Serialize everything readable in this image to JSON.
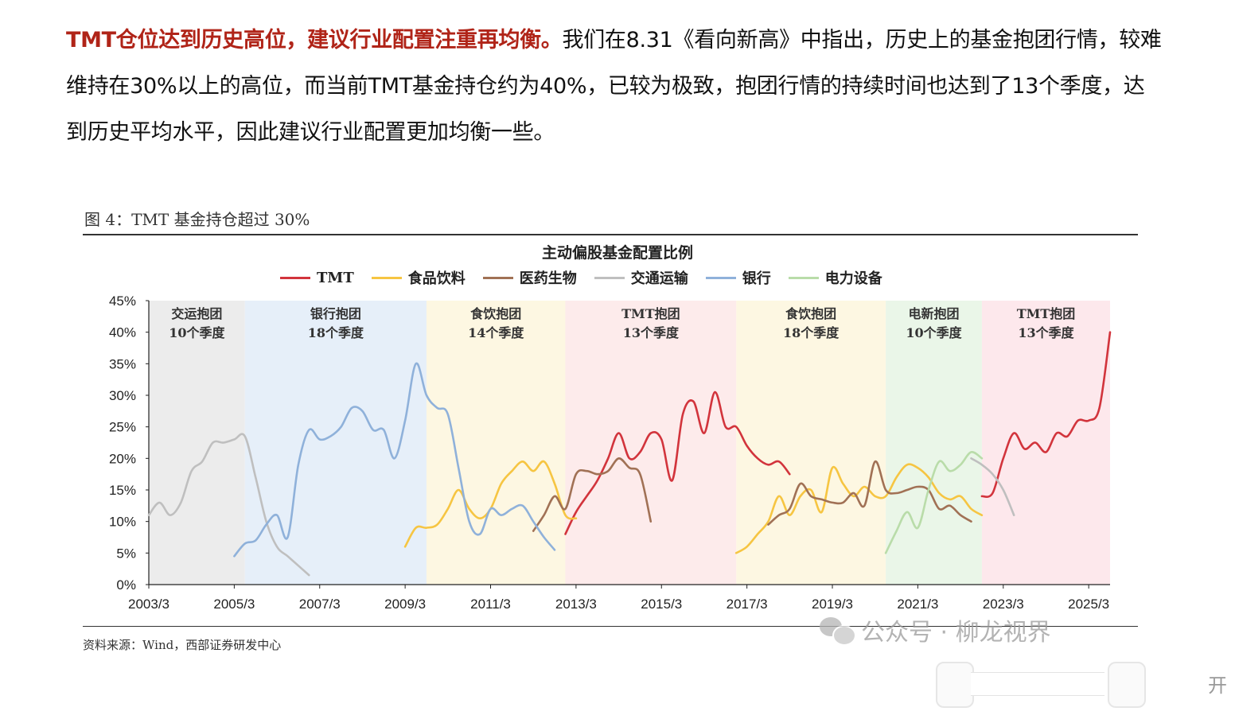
{
  "paragraph": {
    "lead": "TMT仓位达到历史高位，建议行业配置注重再均衡。",
    "body": "我们在8.31《看向新高》中指出，历史上的基金抱团行情，较难维持在30%以上的高位，而当前TMT基金持仓约为40%，已较为极致，抱团行情的持续时间也达到了13个季度，达到历史平均水平，因此建议行业配置更加均衡一些。"
  },
  "figure": {
    "caption": "图 4：TMT 基金持仓超过 30%",
    "source": "资料来源：Wind，西部证券研发中心"
  },
  "watermark": {
    "text": "公众号 · 柳龙视界"
  },
  "controls": {
    "label": "开"
  },
  "chart_data": {
    "type": "line",
    "title": "主动偏股基金配置比例",
    "x_labels": [
      "2003/3",
      "2005/3",
      "2007/3",
      "2009/3",
      "2011/3",
      "2013/3",
      "2015/3",
      "2017/3",
      "2019/3",
      "2021/3",
      "2023/3",
      "2025/3"
    ],
    "y_ticks": [
      "45%",
      "40%",
      "35%",
      "30%",
      "25%",
      "20%",
      "15%",
      "10%",
      "5%",
      "0%"
    ],
    "ylim": [
      0,
      45
    ],
    "xlim": [
      "2003/3",
      "2025/9"
    ],
    "legend_position": "top",
    "bands": [
      {
        "label": "交运抱团",
        "duration": "10个季度",
        "start": "2003/3",
        "end": "2005/6",
        "color": "#ececec"
      },
      {
        "label": "银行抱团",
        "duration": "18个季度",
        "start": "2005/6",
        "end": "2009/9",
        "color": "#e6eff9"
      },
      {
        "label": "食饮抱团",
        "duration": "14个季度",
        "start": "2009/9",
        "end": "2012/12",
        "color": "#fdf7e2"
      },
      {
        "label": "TMT抱团",
        "duration": "13个季度",
        "start": "2012/12",
        "end": "2016/12",
        "color": "#fdebeb"
      },
      {
        "label": "食饮抱团",
        "duration": "18个季度",
        "start": "2016/12",
        "end": "2020/6",
        "color": "#fdf7e2"
      },
      {
        "label": "电新抱团",
        "duration": "10个季度",
        "start": "2020/6",
        "end": "2022/9",
        "color": "#eaf6e8"
      },
      {
        "label": "TMT抱团",
        "duration": "13个季度",
        "start": "2022/9",
        "end": "2025/9",
        "color": "#fde8ec"
      }
    ],
    "series": [
      {
        "name": "TMT",
        "color": "#d2343c",
        "points": [
          [
            "2012/12",
            8
          ],
          [
            "2013/3",
            11.5
          ],
          [
            "2013/6",
            14
          ],
          [
            "2013/9",
            16.5
          ],
          [
            "2013/12",
            20
          ],
          [
            "2014/3",
            24
          ],
          [
            "2014/6",
            20
          ],
          [
            "2014/9",
            21
          ],
          [
            "2014/12",
            24
          ],
          [
            "2015/3",
            23
          ],
          [
            "2015/6",
            16.5
          ],
          [
            "2015/9",
            27
          ],
          [
            "2015/12",
            29
          ],
          [
            "2016/3",
            24
          ],
          [
            "2016/6",
            30.5
          ],
          [
            "2016/9",
            25
          ],
          [
            "2016/12",
            25
          ],
          [
            "2017/3",
            22
          ],
          [
            "2017/6",
            20
          ],
          [
            "2017/9",
            19
          ],
          [
            "2017/12",
            19.5
          ],
          [
            "2018/3",
            17.5
          ]
        ]
      },
      {
        "name": "TMT",
        "color": "#d2343c",
        "points": [
          [
            "2022/9",
            14
          ],
          [
            "2022/12",
            14.5
          ],
          [
            "2023/3",
            20
          ],
          [
            "2023/6",
            24
          ],
          [
            "2023/9",
            21.5
          ],
          [
            "2023/12",
            22.5
          ],
          [
            "2024/3",
            21
          ],
          [
            "2024/6",
            24
          ],
          [
            "2024/9",
            23.5
          ],
          [
            "2024/12",
            26
          ],
          [
            "2025/3",
            26
          ],
          [
            "2025/6",
            28
          ],
          [
            "2025/9",
            40
          ]
        ]
      },
      {
        "name": "食品饮料",
        "color": "#f6c542",
        "points": [
          [
            "2009/3",
            6
          ],
          [
            "2009/6",
            9
          ],
          [
            "2009/9",
            9
          ],
          [
            "2009/12",
            9.5
          ],
          [
            "2010/3",
            12
          ],
          [
            "2010/6",
            15
          ],
          [
            "2010/9",
            12
          ],
          [
            "2010/12",
            10.5
          ],
          [
            "2011/3",
            12
          ],
          [
            "2011/6",
            16
          ],
          [
            "2011/9",
            18
          ],
          [
            "2011/12",
            19.5
          ],
          [
            "2012/3",
            18
          ],
          [
            "2012/6",
            19.5
          ],
          [
            "2012/9",
            16
          ],
          [
            "2012/12",
            11
          ],
          [
            "2013/3",
            10.5
          ]
        ]
      },
      {
        "name": "食品饮料",
        "color": "#f6c542",
        "points": [
          [
            "2016/12",
            5
          ],
          [
            "2017/3",
            6
          ],
          [
            "2017/6",
            8
          ],
          [
            "2017/9",
            10
          ],
          [
            "2017/12",
            14
          ],
          [
            "2018/3",
            11
          ],
          [
            "2018/6",
            14
          ],
          [
            "2018/9",
            15
          ],
          [
            "2018/12",
            11.5
          ],
          [
            "2019/3",
            18.5
          ],
          [
            "2019/6",
            16
          ],
          [
            "2019/9",
            14
          ],
          [
            "2019/12",
            15.5
          ],
          [
            "2020/3",
            14
          ],
          [
            "2020/6",
            14
          ],
          [
            "2020/9",
            17
          ],
          [
            "2020/12",
            19
          ],
          [
            "2021/3",
            18.5
          ],
          [
            "2021/6",
            17
          ],
          [
            "2021/9",
            14.5
          ],
          [
            "2021/12",
            13.5
          ],
          [
            "2022/3",
            14
          ],
          [
            "2022/6",
            12
          ],
          [
            "2022/9",
            11
          ]
        ]
      },
      {
        "name": "医药生物",
        "color": "#a17155",
        "points": [
          [
            "2012/3",
            8.5
          ],
          [
            "2012/6",
            11
          ],
          [
            "2012/9",
            14
          ],
          [
            "2012/12",
            12
          ],
          [
            "2013/3",
            17.5
          ],
          [
            "2013/6",
            18
          ],
          [
            "2013/9",
            17.5
          ],
          [
            "2013/12",
            18
          ],
          [
            "2014/3",
            20
          ],
          [
            "2014/6",
            18.5
          ],
          [
            "2014/9",
            17.5
          ],
          [
            "2014/12",
            10
          ]
        ]
      },
      {
        "name": "医药生物",
        "color": "#a17155",
        "points": [
          [
            "2017/9",
            9.5
          ],
          [
            "2017/12",
            11
          ],
          [
            "2018/3",
            12
          ],
          [
            "2018/6",
            16
          ],
          [
            "2018/9",
            14
          ],
          [
            "2018/12",
            13.5
          ],
          [
            "2019/3",
            13
          ],
          [
            "2019/6",
            13
          ],
          [
            "2019/9",
            14.5
          ],
          [
            "2019/12",
            12.5
          ],
          [
            "2020/3",
            19.5
          ],
          [
            "2020/6",
            15
          ],
          [
            "2020/9",
            14.5
          ],
          [
            "2020/12",
            15
          ],
          [
            "2021/3",
            15.5
          ],
          [
            "2021/6",
            15
          ],
          [
            "2021/9",
            12
          ],
          [
            "2021/12",
            12.5
          ],
          [
            "2022/3",
            11
          ],
          [
            "2022/6",
            10
          ]
        ]
      },
      {
        "name": "交通运输",
        "color": "#bfbfbf",
        "points": [
          [
            "2003/3",
            11
          ],
          [
            "2003/6",
            13
          ],
          [
            "2003/9",
            11
          ],
          [
            "2003/12",
            13
          ],
          [
            "2004/3",
            18
          ],
          [
            "2004/6",
            19.5
          ],
          [
            "2004/9",
            22.5
          ],
          [
            "2004/12",
            22.5
          ],
          [
            "2005/3",
            23
          ],
          [
            "2005/6",
            23.5
          ],
          [
            "2005/9",
            17
          ],
          [
            "2005/12",
            10
          ],
          [
            "2006/3",
            6
          ],
          [
            "2006/6",
            4.5
          ],
          [
            "2006/9",
            3
          ],
          [
            "2006/12",
            1.5
          ]
        ]
      },
      {
        "name": "交通运输",
        "color": "#bfbfbf",
        "points": [
          [
            "2022/6",
            20
          ],
          [
            "2022/9",
            19
          ],
          [
            "2022/12",
            17.5
          ],
          [
            "2023/3",
            15
          ],
          [
            "2023/6",
            11
          ]
        ]
      },
      {
        "name": "银行",
        "color": "#8fb1da",
        "points": [
          [
            "2005/3",
            4.5
          ],
          [
            "2005/6",
            6.5
          ],
          [
            "2005/9",
            7
          ],
          [
            "2005/12",
            9.5
          ],
          [
            "2006/3",
            11
          ],
          [
            "2006/6",
            7.5
          ],
          [
            "2006/9",
            19
          ],
          [
            "2006/12",
            24.5
          ],
          [
            "2007/3",
            23
          ],
          [
            "2007/6",
            23.5
          ],
          [
            "2007/9",
            25
          ],
          [
            "2007/12",
            28
          ],
          [
            "2008/3",
            27.5
          ],
          [
            "2008/6",
            24.5
          ],
          [
            "2008/9",
            24.5
          ],
          [
            "2008/12",
            20
          ],
          [
            "2009/3",
            26
          ],
          [
            "2009/6",
            35
          ],
          [
            "2009/9",
            30
          ],
          [
            "2009/12",
            28
          ],
          [
            "2010/3",
            27
          ],
          [
            "2010/6",
            18.5
          ],
          [
            "2010/9",
            10
          ],
          [
            "2010/12",
            8
          ],
          [
            "2011/3",
            12
          ],
          [
            "2011/6",
            11
          ],
          [
            "2011/9",
            12
          ],
          [
            "2011/12",
            12.5
          ],
          [
            "2012/3",
            10
          ],
          [
            "2012/6",
            7.5
          ],
          [
            "2012/9",
            5.5
          ]
        ]
      },
      {
        "name": "电力设备",
        "color": "#b9dca9",
        "points": [
          [
            "2020/6",
            5
          ],
          [
            "2020/9",
            8.5
          ],
          [
            "2020/12",
            11.5
          ],
          [
            "2021/3",
            9
          ],
          [
            "2021/6",
            15
          ],
          [
            "2021/9",
            19.5
          ],
          [
            "2021/12",
            18
          ],
          [
            "2022/3",
            19
          ],
          [
            "2022/6",
            21
          ],
          [
            "2022/9",
            20
          ]
        ]
      }
    ],
    "legend": [
      {
        "label": "TMT",
        "color": "#d2343c"
      },
      {
        "label": "食品饮料",
        "color": "#f6c542"
      },
      {
        "label": "医药生物",
        "color": "#a17155"
      },
      {
        "label": "交通运输",
        "color": "#bfbfbf"
      },
      {
        "label": "银行",
        "color": "#8fb1da"
      },
      {
        "label": "电力设备",
        "color": "#b9dca9"
      }
    ]
  }
}
